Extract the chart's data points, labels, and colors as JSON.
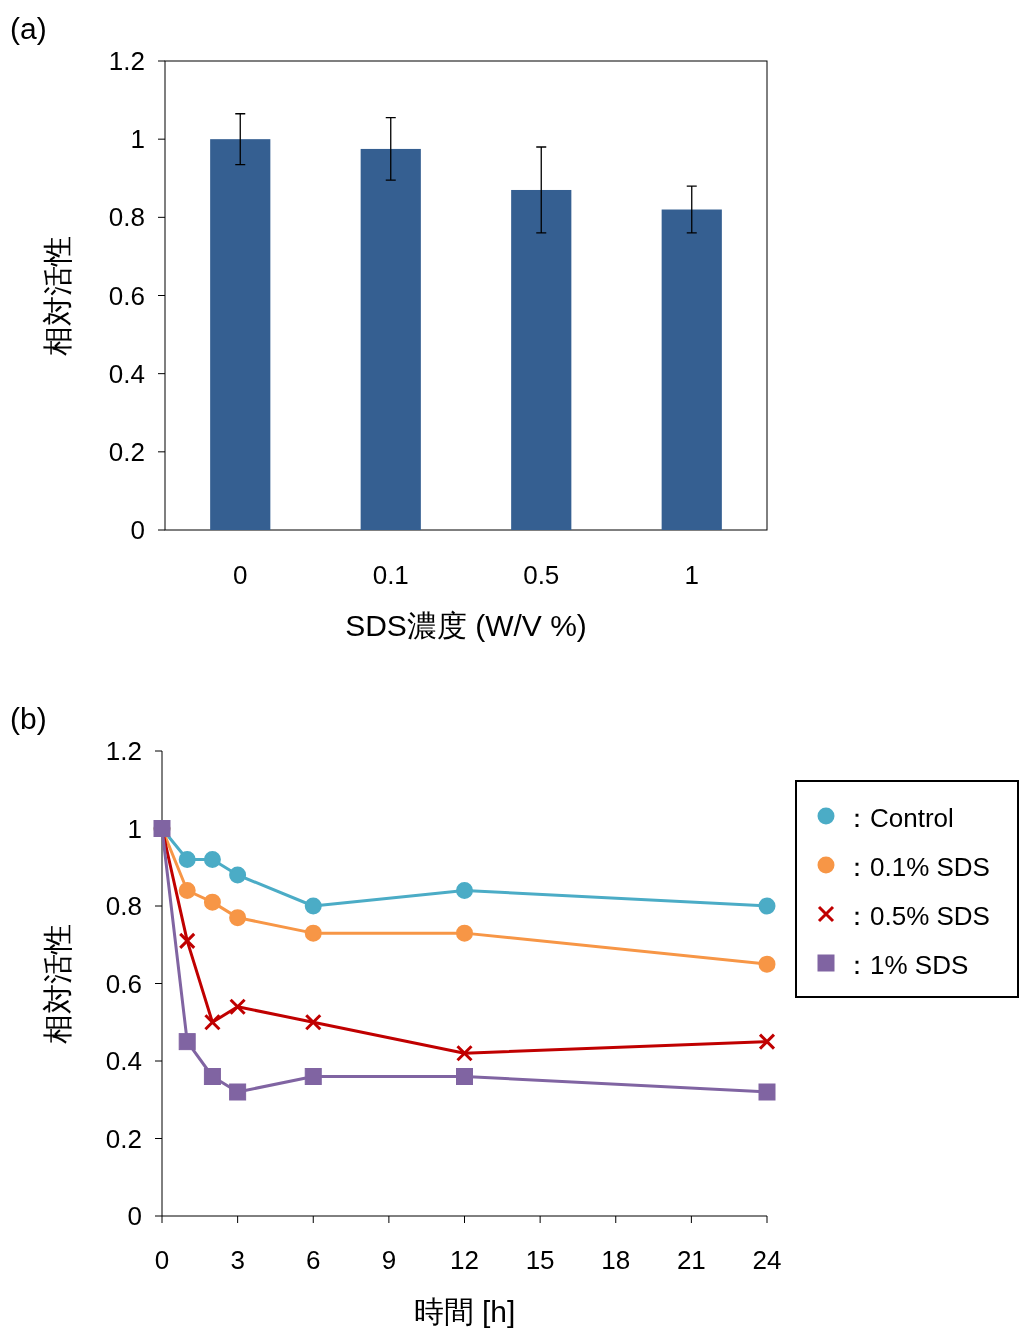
{
  "chart_data": [
    {
      "type": "bar",
      "title": "(a)",
      "xlabel": "SDS濃度 (W/V %)",
      "ylabel": "相対活性",
      "categories": [
        "0",
        "0.1",
        "0.5",
        "1"
      ],
      "values": [
        1.0,
        0.975,
        0.87,
        0.82
      ],
      "errors": [
        0.065,
        0.08,
        0.11,
        0.06
      ],
      "color": "#355f91",
      "ylim": [
        0,
        1.2
      ],
      "yticks": [
        0,
        0.2,
        0.4,
        0.6,
        0.8,
        1,
        1.2
      ],
      "grid": false
    },
    {
      "type": "line",
      "title": "(b)",
      "xlabel": "時間 [h]",
      "ylabel": "相対活性",
      "x": [
        0,
        1,
        2,
        3,
        6,
        12,
        24
      ],
      "xlim": [
        0,
        24
      ],
      "xticks": [
        0,
        3,
        6,
        9,
        12,
        15,
        18,
        21,
        24
      ],
      "ylim": [
        0,
        1.2
      ],
      "yticks": [
        0,
        0.2,
        0.4,
        0.6,
        0.8,
        1,
        1.2
      ],
      "grid": false,
      "legend": "right",
      "series": [
        {
          "name": "：Control",
          "color": "#4bacc6",
          "marker": "circle",
          "values": [
            1,
            0.92,
            0.92,
            0.88,
            0.8,
            0.84,
            0.8
          ]
        },
        {
          "name": "：0.1% SDS",
          "color": "#f79646",
          "marker": "circle",
          "values": [
            1,
            0.84,
            0.81,
            0.77,
            0.73,
            0.73,
            0.65
          ]
        },
        {
          "name": "：0.5% SDS",
          "color": "#c00000",
          "marker": "cross",
          "values": [
            1,
            0.71,
            0.5,
            0.54,
            0.5,
            0.42,
            0.45
          ]
        },
        {
          "name": "：1% SDS",
          "color": "#8064a2",
          "marker": "square",
          "values": [
            1,
            0.45,
            0.36,
            0.32,
            0.36,
            0.36,
            0.32
          ]
        }
      ]
    }
  ]
}
